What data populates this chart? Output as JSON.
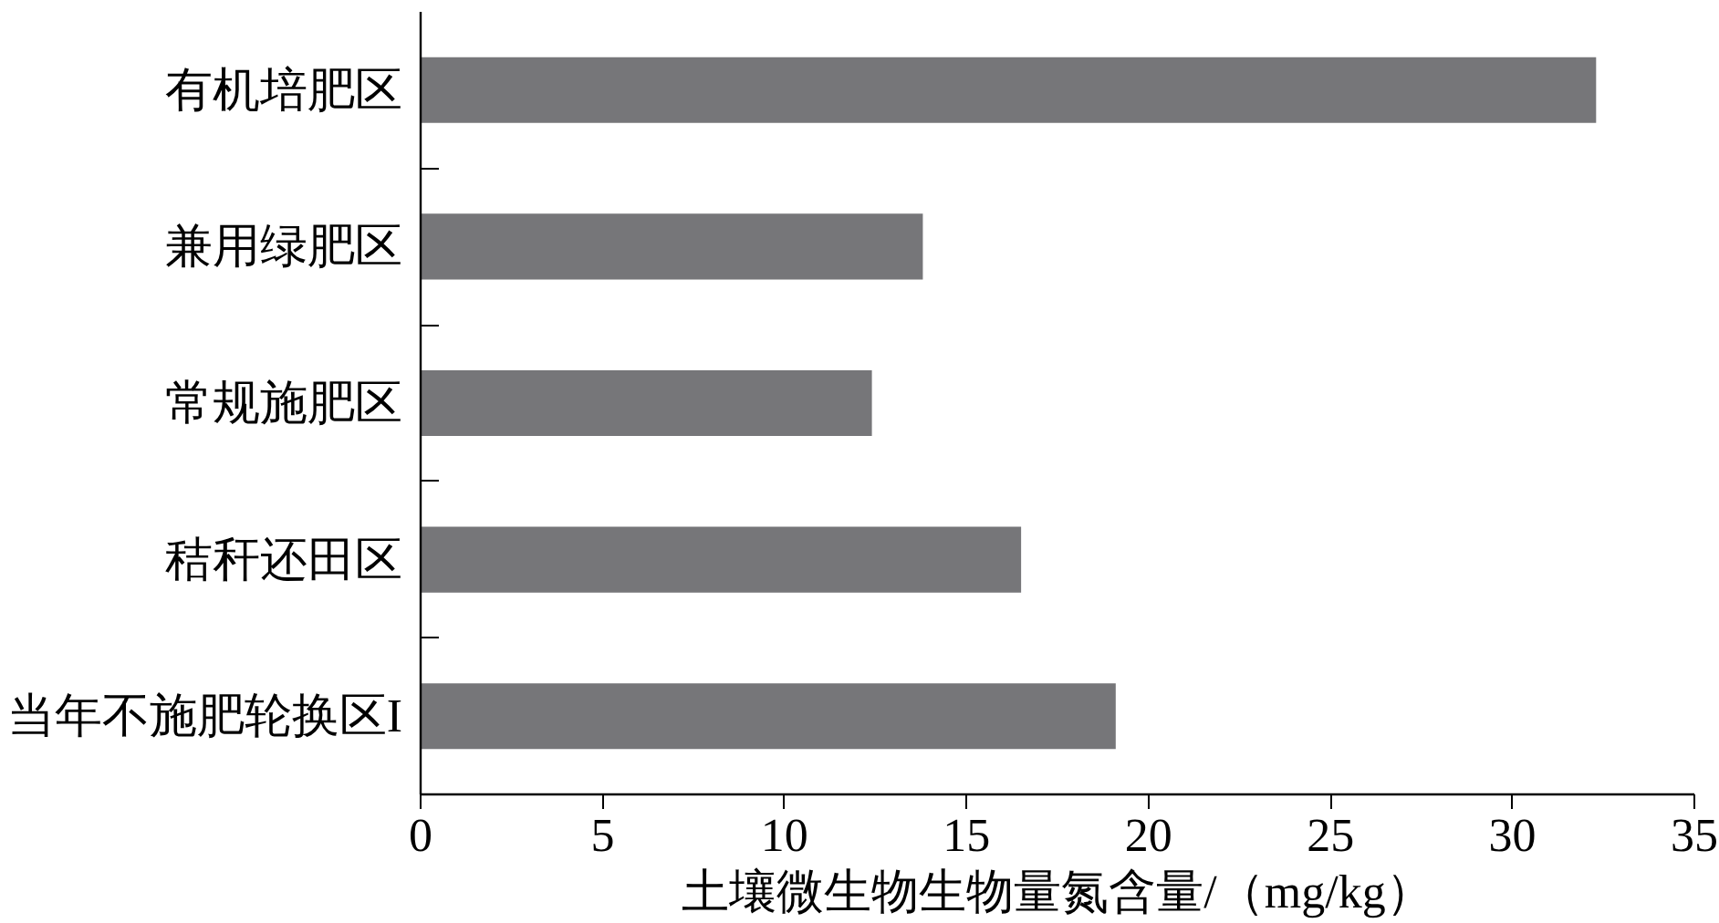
{
  "chart_data": {
    "type": "bar",
    "orientation": "horizontal",
    "xlabel": "土壤微生物生物量氮含量/（mg/kg）",
    "categories": [
      "有机培肥区",
      "兼用绿肥区",
      "常规施肥区",
      "秸秆还田区",
      "当年不施肥轮换区I"
    ],
    "values": [
      32.3,
      13.8,
      12.4,
      16.5,
      19.1
    ],
    "color": "#767679",
    "xlim": [
      0,
      35
    ],
    "xticks": [
      0,
      5,
      10,
      15,
      20,
      25,
      30,
      35
    ],
    "grid": false
  }
}
